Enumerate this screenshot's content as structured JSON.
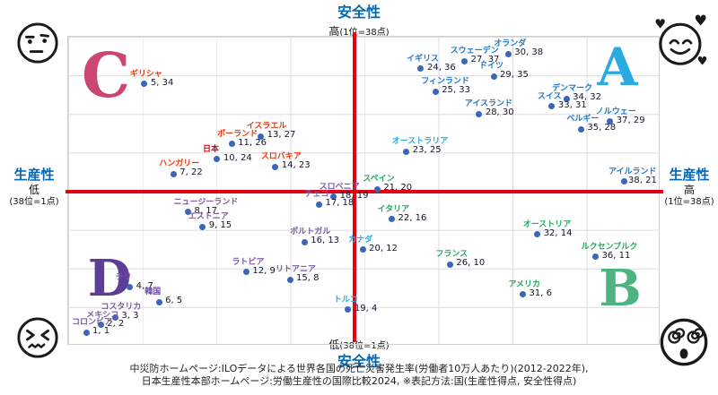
{
  "axes": {
    "top": {
      "title": "安全性",
      "level": "高",
      "range": "(1位=38点)"
    },
    "bottom": {
      "level": "低",
      "range": "(38位=1点)",
      "title": "安全性"
    },
    "left": {
      "title": "生産性",
      "level": "低",
      "range": "(38位=1点)"
    },
    "right": {
      "title": "生産性",
      "level": "高",
      "range": "(1位=38点)"
    }
  },
  "quadrants": {
    "top_left": {
      "letter": "C",
      "color": "#cc4770"
    },
    "top_right": {
      "letter": "A",
      "color": "#29abe2"
    },
    "bottom_left": {
      "letter": "D",
      "color": "#5c3e94"
    },
    "bottom_right": {
      "letter": "B",
      "color": "#4db380"
    }
  },
  "icons": {
    "top_left": "unamused-face-icon",
    "top_right": "smiling-face-with-hearts-icon",
    "bottom_left": "confounded-face-icon",
    "bottom_right": "dizzy-face-icon"
  },
  "colors": {
    "axis_line_red": "#e60012",
    "axis_title_blue": "#0068b7",
    "dot_blue": "#3a66b8",
    "value_text": "#14142b",
    "grid": "#dcdcdc",
    "label_red": "#e8380d",
    "label_blue": "#1f78c8",
    "label_cyan": "#29abe2",
    "label_green": "#27a85f",
    "label_purple": "#7a5ba6"
  },
  "chart_data": {
    "type": "scatter",
    "xlabel": "生産性",
    "ylabel": "安全性",
    "xlim": [
      1,
      38
    ],
    "ylim": [
      1,
      38
    ],
    "center": [
      19.5,
      19.5
    ],
    "grid": true,
    "note": "各点は 国(生産性得点, 安全性得点)。1位=38点, 38位=1点",
    "points": [
      {
        "name": "ギリシャ",
        "x": 5,
        "y": 34,
        "color": "#e8380d"
      },
      {
        "name": "イスラエル",
        "x": 13,
        "y": 27,
        "color": "#e8380d"
      },
      {
        "name": "ポーランド",
        "x": 11,
        "y": 26,
        "color": "#e8380d"
      },
      {
        "name": "日本",
        "x": 10,
        "y": 24,
        "color": "#e60012",
        "bold": true
      },
      {
        "name": "スロバキア",
        "x": 14,
        "y": 23,
        "color": "#e8380d"
      },
      {
        "name": "ハンガリー",
        "x": 7,
        "y": 22,
        "color": "#e8380d"
      },
      {
        "name": "オランダ",
        "x": 30,
        "y": 38,
        "color": "#1f78c8"
      },
      {
        "name": "スウェーデン",
        "x": 27,
        "y": 37,
        "color": "#1f78c8"
      },
      {
        "name": "イギリス",
        "x": 24,
        "y": 36,
        "color": "#1f78c8"
      },
      {
        "name": "ドイツ",
        "x": 29,
        "y": 35,
        "color": "#1f78c8"
      },
      {
        "name": "フィンランド",
        "x": 25,
        "y": 33,
        "color": "#1f78c8"
      },
      {
        "name": "デンマーク",
        "x": 34,
        "y": 32,
        "color": "#1f78c8"
      },
      {
        "name": "スイス",
        "x": 33,
        "y": 31,
        "color": "#1f78c8"
      },
      {
        "name": "アイスランド",
        "x": 28,
        "y": 30,
        "color": "#1f78c8"
      },
      {
        "name": "ノルウェー",
        "x": 37,
        "y": 29,
        "color": "#1f78c8"
      },
      {
        "name": "ベルギー",
        "x": 35,
        "y": 28,
        "color": "#1f78c8"
      },
      {
        "name": "アイルランド",
        "x": 38,
        "y": 21,
        "color": "#1f78c8"
      },
      {
        "name": "オーストラリア",
        "x": 23,
        "y": 25,
        "color": "#29abe2"
      },
      {
        "name": "カナダ",
        "x": 20,
        "y": 12,
        "color": "#29abe2"
      },
      {
        "name": "トルコ",
        "x": 19,
        "y": 4,
        "color": "#29abe2"
      },
      {
        "name": "スペイン",
        "x": 21,
        "y": 20,
        "color": "#27a85f"
      },
      {
        "name": "イタリア",
        "x": 22,
        "y": 16,
        "color": "#27a85f"
      },
      {
        "name": "オーストリア",
        "x": 32,
        "y": 14,
        "color": "#27a85f"
      },
      {
        "name": "ルクセンブルク",
        "x": 36,
        "y": 11,
        "color": "#27a85f"
      },
      {
        "name": "フランス",
        "x": 26,
        "y": 10,
        "color": "#27a85f"
      },
      {
        "name": "アメリカ",
        "x": 31,
        "y": 6,
        "color": "#27a85f"
      },
      {
        "name": "スロベニア",
        "x": 18,
        "y": 19,
        "color": "#7a5ba6"
      },
      {
        "name": "チェコ",
        "x": 17,
        "y": 18,
        "color": "#7a5ba6"
      },
      {
        "name": "ニュージーランド",
        "x": 8,
        "y": 17,
        "color": "#7a5ba6"
      },
      {
        "name": "エストニア",
        "x": 9,
        "y": 15,
        "color": "#7a5ba6"
      },
      {
        "name": "ポルトガル",
        "x": 16,
        "y": 13,
        "color": "#7a5ba6"
      },
      {
        "name": "ラトビア",
        "x": 12,
        "y": 9,
        "color": "#7a5ba6"
      },
      {
        "name": "リトアニア",
        "x": 15,
        "y": 8,
        "color": "#7a5ba6"
      },
      {
        "name": "チリ",
        "x": 4,
        "y": 7,
        "color": "#7a5ba6"
      },
      {
        "name": "韓国",
        "x": 6,
        "y": 5,
        "color": "#6a4a9e",
        "bold": true
      },
      {
        "name": "コスタリカ",
        "x": 3,
        "y": 3,
        "color": "#7a5ba6"
      },
      {
        "name": "メキシコ",
        "x": 2,
        "y": 2,
        "color": "#7a5ba6"
      },
      {
        "name": "コロンビア",
        "x": 1,
        "y": 1,
        "color": "#7a5ba6"
      }
    ]
  },
  "footer": {
    "line1": "中災防ホームページ:ILOデータによる世界各国の死亡災害発生率(労働者10万人あたり)(2012-2022年),",
    "line2": "日本生産性本部ホームページ:労働生産性の国際比較2024, ※表記方法:国(生産性得点, 安全性得点)"
  }
}
